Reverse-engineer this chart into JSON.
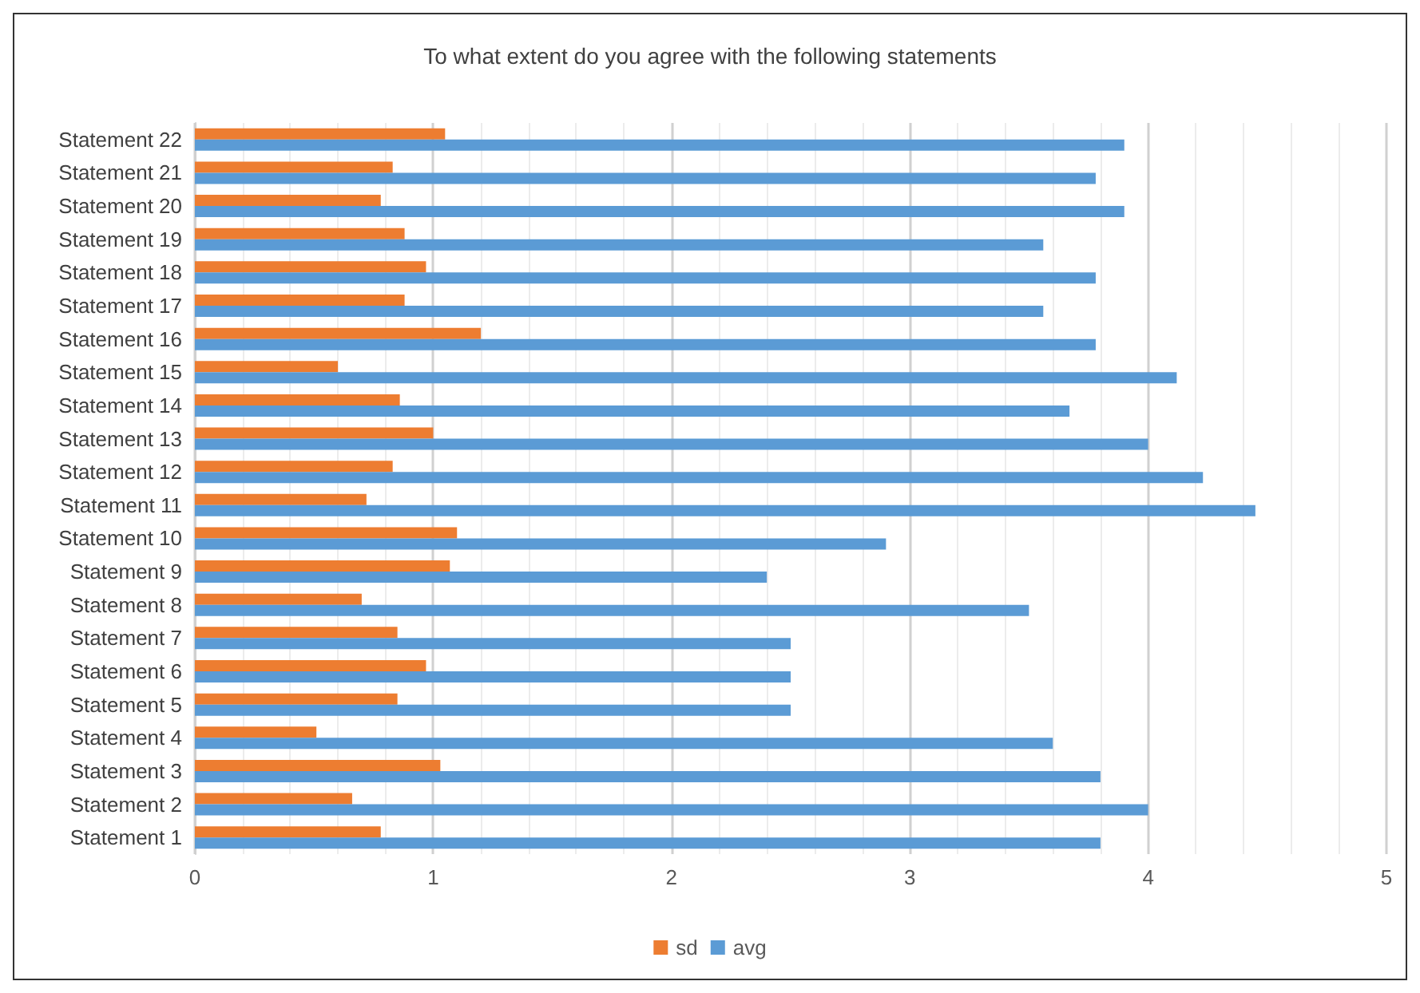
{
  "chart_data": {
    "type": "bar",
    "orientation": "horizontal",
    "title": "To what extent do you agree with the following statements",
    "categories": [
      "Statement 22",
      "Statement 21",
      "Statement 20",
      "Statement 19",
      "Statement 18",
      "Statement 17",
      "Statement 16",
      "Statement 15",
      "Statement 14",
      "Statement 13",
      "Statement 12",
      "Statement 11",
      "Statement 10",
      "Statement 9",
      "Statement 8",
      "Statement 7",
      "Statement 6",
      "Statement 5",
      "Statement 4",
      "Statement 3",
      "Statement 2",
      "Statement 1"
    ],
    "series": [
      {
        "name": "sd",
        "color": "#ed7d31",
        "values": [
          1.05,
          0.83,
          0.78,
          0.88,
          0.97,
          0.88,
          1.2,
          0.6,
          0.86,
          1.0,
          0.83,
          0.72,
          1.1,
          1.07,
          0.7,
          0.85,
          0.97,
          0.85,
          0.51,
          1.03,
          0.66,
          0.78
        ]
      },
      {
        "name": "avg",
        "color": "#5b9bd5",
        "values": [
          3.9,
          3.78,
          3.9,
          3.56,
          3.78,
          3.56,
          3.78,
          4.12,
          3.67,
          4.0,
          4.23,
          4.45,
          2.9,
          2.4,
          3.5,
          2.5,
          2.5,
          2.5,
          3.6,
          3.8,
          4.0,
          3.8
        ]
      }
    ],
    "xlim": [
      0,
      5
    ],
    "xticks": [
      0,
      1,
      2,
      3,
      4,
      5
    ],
    "grid": true,
    "legend": "bottom"
  }
}
